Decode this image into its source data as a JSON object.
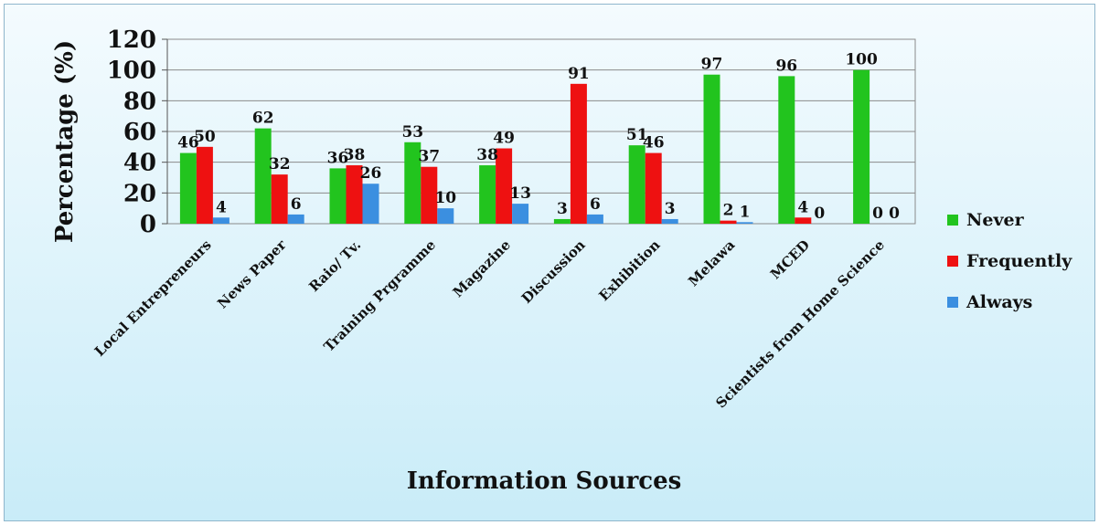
{
  "chart_data": {
    "type": "bar",
    "title": "",
    "xlabel": "Information Sources",
    "ylabel": "Percentage (%)",
    "ylim": [
      0,
      120
    ],
    "yticks": [
      0,
      20,
      40,
      60,
      80,
      100,
      120
    ],
    "grid": true,
    "legend_position": "right",
    "categories": [
      "Local Entrepreneurs",
      "News Paper",
      "Raio/ Tv.",
      "Training Prgramme",
      "Magazine",
      "Discussion",
      "Exhibition",
      "Melawa",
      "MCED",
      "Scientists from Home Science"
    ],
    "series": [
      {
        "name": "Never",
        "color": "#22c41e",
        "values": [
          46,
          62,
          36,
          53,
          38,
          3,
          51,
          97,
          96,
          100
        ]
      },
      {
        "name": "Frequently",
        "color": "#ee1111",
        "values": [
          50,
          32,
          38,
          37,
          49,
          91,
          46,
          2,
          4,
          0
        ]
      },
      {
        "name": "Always",
        "color": "#3b8fe0",
        "values": [
          4,
          6,
          26,
          10,
          13,
          6,
          3,
          1,
          0,
          0
        ]
      }
    ]
  }
}
